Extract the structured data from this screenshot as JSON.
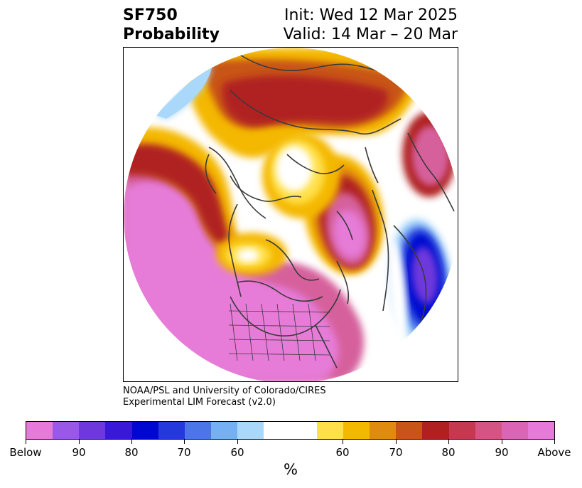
{
  "title": {
    "line1_left": "SF750",
    "line2_left": "Probability",
    "line1_right": "Init: Wed 12 Mar 2025",
    "line2_right": "Valid: 14 Mar – 20 Mar"
  },
  "credit": {
    "line1": "NOAA/PSL and University of Colorado/CIRES",
    "line2": "Experimental LIM Forecast (v2.0)"
  },
  "colorbar": {
    "unit": "%",
    "colors": [
      "#e77ad9",
      "#9a58e6",
      "#6e38dc",
      "#3a18d8",
      "#0007d0",
      "#2438dc",
      "#4c76e8",
      "#74b0f2",
      "#aad8fa",
      "#ffffff",
      "#ffffff",
      "#ffe04a",
      "#f4b800",
      "#e08a10",
      "#c85418",
      "#b02020",
      "#c43850",
      "#d45484",
      "#dc64b4",
      "#e77ad9"
    ],
    "tick_labels": [
      "Below",
      "90",
      "80",
      "70",
      "60",
      "60",
      "70",
      "80",
      "90",
      "Above"
    ]
  },
  "map": {
    "projection": "north-polar-stereographic",
    "palette": {
      "pink": "#e67bd8",
      "magenta": "#d6609c",
      "rose": "#c33a52",
      "red": "#b02222",
      "darkorange": "#c85418",
      "orange": "#e08a10",
      "gold": "#f4b800",
      "yellow": "#ffe04a",
      "white": "#ffffff",
      "lightblue": "#aad8fa",
      "blue": "#4c76e8",
      "darkblue": "#0007d0",
      "purple": "#6e38dc",
      "coast": "#3a3a3a"
    }
  }
}
